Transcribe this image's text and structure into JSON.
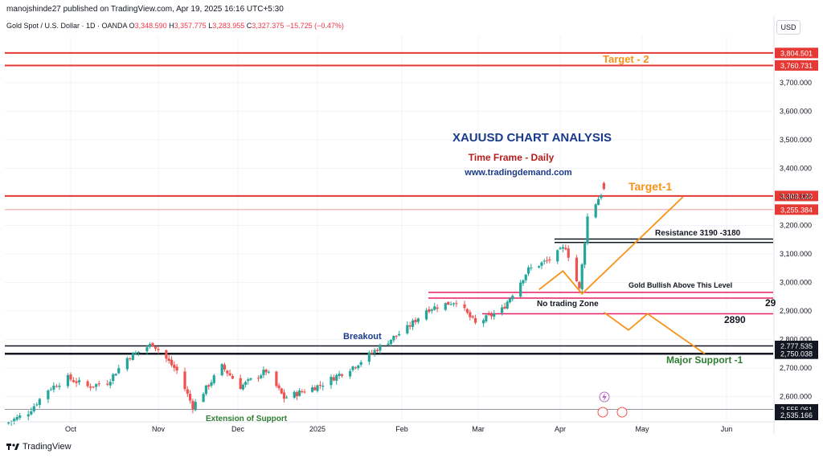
{
  "header": {
    "publisher": "manojshinde27 published on TradingView.com, Apr 19, 2025 16:16 UTC+5:30",
    "symbol": "Gold Spot / U.S. Dollar · 1D · OANDA",
    "open_label": "O",
    "open": "3,348.590",
    "high_label": "H",
    "high": "3,357.775",
    "low_label": "L",
    "low": "3,283.955",
    "close_label": "C",
    "close": "3,327.375",
    "change": "−15.725 (−0.47%)",
    "currency": "USD"
  },
  "brand": {
    "name": "TradingView"
  },
  "colors": {
    "up": "#26a69a",
    "down": "#ef5350",
    "red_line": "#e53935",
    "pink_line": "#e91e63",
    "orange": "#f7931a",
    "navy": "#1a3a8a",
    "dark_red": "#b71c1c",
    "green_text": "#2e7d32",
    "grid": "#f0f3fa"
  },
  "chart_data": {
    "type": "candlestick",
    "x_labels": [
      "Oct",
      "Nov",
      "Dec",
      "2025",
      "Feb",
      "Mar",
      "Apr",
      "May",
      "Jun"
    ],
    "y_ticks": [
      2600,
      2700,
      2800,
      2900,
      3000,
      3100,
      3200,
      3300,
      3400,
      3500,
      3600,
      3700
    ],
    "y_tick_labels": [
      "2,600.000",
      "2,700.000",
      "2,800.000",
      "2,900.000",
      "3,000.000",
      "3,100.000",
      "3,200.000",
      "3,300.000",
      "3,400.000",
      "3,500.000",
      "3,600.000",
      "3,700.000"
    ],
    "ylim": [
      2520,
      3860
    ],
    "series_waypoints": [
      {
        "date": "2024-09-09",
        "value": 2510
      },
      {
        "date": "2024-09-16",
        "value": 2545
      },
      {
        "date": "2024-09-23",
        "value": 2625
      },
      {
        "date": "2024-09-30",
        "value": 2665
      },
      {
        "date": "2024-10-07",
        "value": 2635
      },
      {
        "date": "2024-10-14",
        "value": 2650
      },
      {
        "date": "2024-10-21",
        "value": 2735
      },
      {
        "date": "2024-10-30",
        "value": 2785
      },
      {
        "date": "2024-11-08",
        "value": 2690
      },
      {
        "date": "2024-11-14",
        "value": 2565
      },
      {
        "date": "2024-11-25",
        "value": 2705
      },
      {
        "date": "2024-12-02",
        "value": 2635
      },
      {
        "date": "2024-12-12",
        "value": 2690
      },
      {
        "date": "2024-12-19",
        "value": 2595
      },
      {
        "date": "2025-01-02",
        "value": 2640
      },
      {
        "date": "2025-01-15",
        "value": 2710
      },
      {
        "date": "2025-01-24",
        "value": 2775
      },
      {
        "date": "2025-02-03",
        "value": 2840
      },
      {
        "date": "2025-02-10",
        "value": 2905
      },
      {
        "date": "2025-02-21",
        "value": 2935
      },
      {
        "date": "2025-02-28",
        "value": 2855
      },
      {
        "date": "2025-03-10",
        "value": 2905
      },
      {
        "date": "2025-03-20",
        "value": 3045
      },
      {
        "date": "2025-03-28",
        "value": 3080
      },
      {
        "date": "2025-04-03",
        "value": 3125
      },
      {
        "date": "2025-04-08",
        "value": 2975
      },
      {
        "date": "2025-04-11",
        "value": 3230
      },
      {
        "date": "2025-04-17",
        "value": 3327
      }
    ],
    "levels": [
      {
        "value": 3804.501,
        "label": "3,804.501",
        "style": "red",
        "tag": "red"
      },
      {
        "value": 3760.731,
        "label": "3,760.731",
        "style": "red",
        "tag": "red"
      },
      {
        "value": 3303.133,
        "label": "3,303.133",
        "style": "red",
        "tag": "red"
      },
      {
        "value": 3255.384,
        "label": "3,255.384",
        "style": "thin-red",
        "tag": "red"
      },
      {
        "value": 2777.535,
        "label": "2,777.535",
        "style": "black",
        "tag": "black"
      },
      {
        "value": 2750.038,
        "label": "2,750.038",
        "style": "black-thick",
        "tag": "black"
      },
      {
        "value": 2555.061,
        "label": "2,555.061",
        "style": "black-thin",
        "tag": "black"
      },
      {
        "value": 2535.166,
        "label": "2,535.166",
        "style": "none",
        "tag": "black"
      }
    ],
    "annotations": {
      "title": "XAUUSD CHART ANALYSIS",
      "timeframe": "Time Frame - Daily",
      "website": "www.tradingdemand.com",
      "target2": "Target - 2",
      "target1": "Target-1",
      "resistance": "Resistance  3190 -3180",
      "bullish": "Gold  Bullish Above This Level",
      "no_trade": "No trading  Zone",
      "level_2890": "2890",
      "clipped_29": "29",
      "major_support": "Major Support -1",
      "breakout": "Breakout",
      "extension": "Extension of Support"
    }
  }
}
